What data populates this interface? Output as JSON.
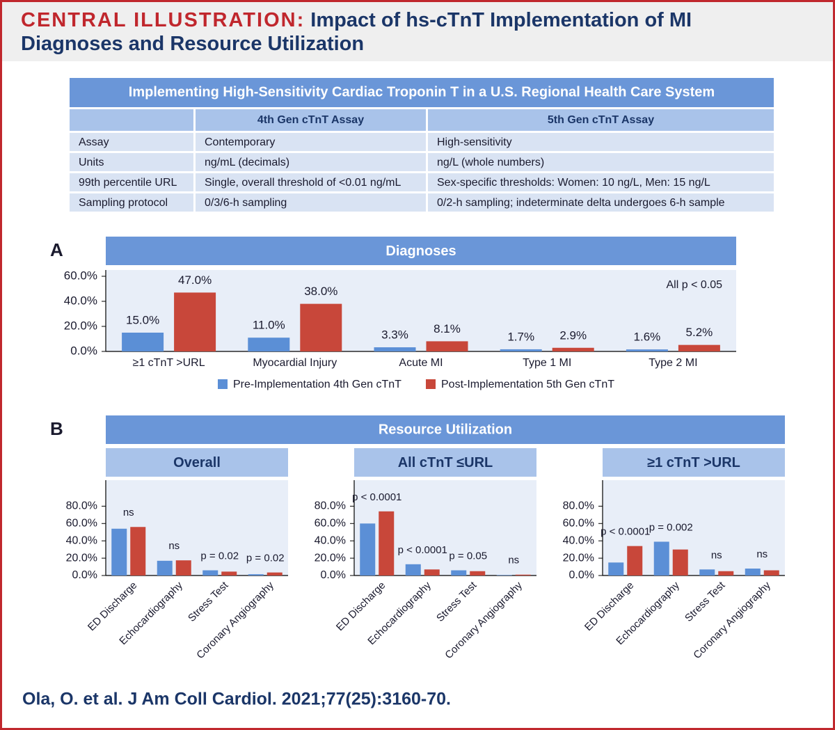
{
  "header": {
    "label": "CENTRAL ILLUSTRATION:",
    "title": "Impact of hs-cTnT Implementation of MI Diagnoses and Resource Utilization"
  },
  "table": {
    "title": "Implementing High-Sensitivity Cardiac Troponin T in a U.S. Regional Health Care System",
    "columns": [
      "4th Gen cTnT Assay",
      "5th Gen cTnT Assay"
    ],
    "rows": [
      [
        "Assay",
        "Contemporary",
        "High-sensitivity"
      ],
      [
        "Units",
        "ng/mL (decimals)",
        "ng/L (whole numbers)"
      ],
      [
        "99th percentile URL",
        "Single, overall threshold of <0.01 ng/mL",
        "Sex-specific thresholds: Women: 10 ng/L, Men: 15 ng/L"
      ],
      [
        "Sampling protocol",
        "0/3/6-h sampling",
        "0/2-h sampling; indeterminate delta undergoes 6-h sample"
      ]
    ]
  },
  "panel_labels": [
    "A",
    "B"
  ],
  "section_title": "Resource Utilization",
  "chart_data": [
    {
      "type": "bar",
      "title": "Diagnoses",
      "annotation": "All p < 0.05",
      "categories": [
        "≥1 cTnT >URL",
        "Myocardial Injury",
        "Acute MI",
        "Type 1 MI",
        "Type 2 MI"
      ],
      "series": [
        {
          "name": "Pre-Implementation 4th Gen cTnT",
          "color": "#5b8fd6",
          "values": [
            15.0,
            11.0,
            3.3,
            1.7,
            1.6
          ],
          "value_labels": [
            "15.0%",
            "11.0%",
            "3.3%",
            "1.7%",
            "1.6%"
          ]
        },
        {
          "name": "Post-Implementation 5th Gen cTnT",
          "color": "#c8473a",
          "values": [
            47.0,
            38.0,
            8.1,
            2.9,
            5.2
          ],
          "value_labels": [
            "47.0%",
            "38.0%",
            "8.1%",
            "2.9%",
            "5.2%"
          ]
        }
      ],
      "ylim": [
        0,
        65
      ],
      "yticks": [
        {
          "value": 0,
          "label": "0.0%"
        },
        {
          "value": 20,
          "label": "20.0%"
        },
        {
          "value": 40,
          "label": "40.0%"
        },
        {
          "value": 60,
          "label": "60.0%"
        }
      ],
      "legend": "bottom"
    },
    {
      "type": "bar",
      "title": "Overall",
      "categories": [
        "ED Discharge",
        "Echocardiography",
        "Stress Test",
        "Coronary Angiography"
      ],
      "annotations": [
        "ns",
        "ns",
        "p = 0.02",
        "p = 0.02"
      ],
      "series": [
        {
          "color": "#5b8fd6",
          "values": [
            54,
            17,
            6,
            1.5
          ]
        },
        {
          "color": "#c8473a",
          "values": [
            56,
            17.5,
            4.5,
            3.5
          ]
        }
      ],
      "ylim": [
        0,
        110
      ],
      "yticks": [
        {
          "value": 0,
          "label": "0.0%"
        },
        {
          "value": 20,
          "label": "20.0%"
        },
        {
          "value": 40,
          "label": "40.0%"
        },
        {
          "value": 60,
          "label": "60.0%"
        },
        {
          "value": 80,
          "label": "80.0%"
        }
      ]
    },
    {
      "type": "bar",
      "title": "All cTnT ≤URL",
      "categories": [
        "ED Discharge",
        "Echocardiography",
        "Stress Test",
        "Coronary Angiography"
      ],
      "annotations": [
        "p < 0.0001",
        "p < 0.0001",
        "p = 0.05",
        "ns"
      ],
      "series": [
        {
          "color": "#5b8fd6",
          "values": [
            60,
            13,
            6,
            0.5
          ]
        },
        {
          "color": "#c8473a",
          "values": [
            74,
            7,
            5,
            1
          ]
        }
      ],
      "ylim": [
        0,
        110
      ],
      "yticks": [
        {
          "value": 0,
          "label": "0.0%"
        },
        {
          "value": 20,
          "label": "20.0%"
        },
        {
          "value": 40,
          "label": "40.0%"
        },
        {
          "value": 60,
          "label": "60.0%"
        },
        {
          "value": 80,
          "label": "80.0%"
        }
      ]
    },
    {
      "type": "bar",
      "title": "≥1 cTnT >URL",
      "categories": [
        "ED Discharge",
        "Echocardiography",
        "Stress Test",
        "Coronary Angiography"
      ],
      "annotations": [
        "p < 0.0001",
        "p = 0.002",
        "ns",
        "ns"
      ],
      "series": [
        {
          "color": "#5b8fd6",
          "values": [
            15,
            39,
            7,
            8
          ]
        },
        {
          "color": "#c8473a",
          "values": [
            34,
            30,
            5,
            6
          ]
        }
      ],
      "ylim": [
        0,
        110
      ],
      "yticks": [
        {
          "value": 0,
          "label": "0.0%"
        },
        {
          "value": 20,
          "label": "20.0%"
        },
        {
          "value": 40,
          "label": "40.0%"
        },
        {
          "value": 60,
          "label": "60.0%"
        },
        {
          "value": 80,
          "label": "80.0%"
        }
      ]
    }
  ],
  "citation": "Ola, O. et al. J Am Coll Cardiol. 2021;77(25):3160-70."
}
